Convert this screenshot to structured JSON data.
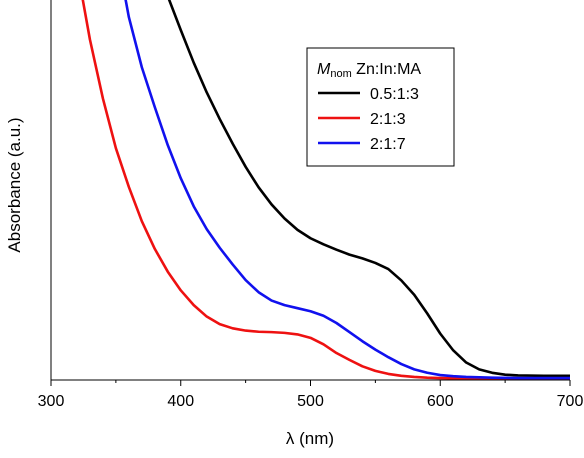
{
  "chart_data": {
    "type": "line",
    "xlabel": "λ (nm)",
    "ylabel": "Absorbance (a.u.)",
    "xlim": [
      300,
      700
    ],
    "ylim": [
      0,
      1
    ],
    "x_ticks": [
      300,
      400,
      500,
      600,
      700
    ],
    "y_ticks_shown": false,
    "grid": false,
    "legend": {
      "position": "top-right",
      "title_italic": "M",
      "title_subscript": "nom",
      "title_rest": " Zn:In:MA"
    },
    "series": [
      {
        "name": "0.5:1:3",
        "color": "#000000",
        "x": [
          390,
          400,
          410,
          420,
          430,
          440,
          450,
          460,
          470,
          480,
          490,
          500,
          510,
          520,
          530,
          540,
          550,
          560,
          570,
          580,
          590,
          600,
          610,
          620,
          630,
          640,
          650,
          660,
          680,
          700
        ],
        "y": [
          1.01,
          0.921,
          0.835,
          0.757,
          0.687,
          0.622,
          0.561,
          0.507,
          0.462,
          0.425,
          0.395,
          0.373,
          0.357,
          0.343,
          0.33,
          0.32,
          0.308,
          0.292,
          0.262,
          0.224,
          0.175,
          0.122,
          0.078,
          0.046,
          0.028,
          0.019,
          0.014,
          0.012,
          0.011,
          0.011
        ]
      },
      {
        "name": "2:1:3",
        "color": "#ee1111",
        "x": [
          324,
          330,
          340,
          350,
          360,
          370,
          380,
          390,
          400,
          410,
          420,
          430,
          440,
          450,
          460,
          470,
          480,
          490,
          500,
          510,
          520,
          530,
          540,
          550,
          560,
          570,
          580,
          590,
          600,
          620,
          650,
          700
        ],
        "y": [
          1.01,
          0.896,
          0.741,
          0.61,
          0.508,
          0.418,
          0.345,
          0.285,
          0.236,
          0.197,
          0.167,
          0.147,
          0.136,
          0.13,
          0.127,
          0.126,
          0.124,
          0.12,
          0.111,
          0.094,
          0.071,
          0.053,
          0.036,
          0.024,
          0.016,
          0.011,
          0.008,
          0.006,
          0.005,
          0.004,
          0.004,
          0.004
        ]
      },
      {
        "name": "2:1:7",
        "color": "#1111ee",
        "x": [
          357,
          360,
          370,
          380,
          390,
          400,
          410,
          420,
          430,
          440,
          450,
          460,
          470,
          480,
          490,
          500,
          510,
          520,
          530,
          540,
          550,
          560,
          570,
          580,
          590,
          600,
          610,
          620,
          640,
          660,
          700
        ],
        "y": [
          1.01,
          0.955,
          0.823,
          0.718,
          0.618,
          0.531,
          0.457,
          0.397,
          0.348,
          0.304,
          0.263,
          0.231,
          0.209,
          0.197,
          0.189,
          0.181,
          0.169,
          0.15,
          0.126,
          0.102,
          0.08,
          0.06,
          0.042,
          0.028,
          0.019,
          0.013,
          0.01,
          0.008,
          0.006,
          0.005,
          0.005
        ]
      }
    ]
  }
}
